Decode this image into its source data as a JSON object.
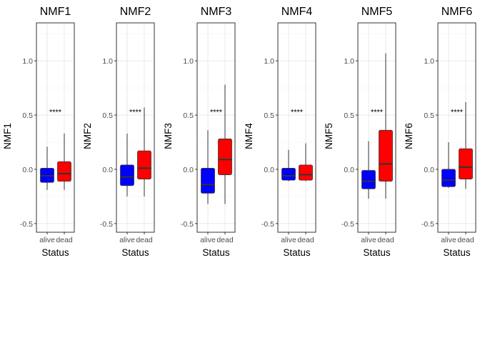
{
  "chart_data": {
    "type": "boxplot",
    "xlabel": "Status",
    "categories": [
      "alive",
      "dead"
    ],
    "ylim": [
      -0.58,
      1.35
    ],
    "yticks": [
      -0.5,
      0.0,
      0.5,
      1.0
    ],
    "ytick_labels": [
      "-0.5",
      "0.0",
      "0.5",
      "1.0"
    ],
    "grid": true,
    "legend": "none",
    "colors": {
      "alive": "#0000ff",
      "dead": "#ff0000"
    },
    "significance": "****",
    "significance_y": 0.53,
    "panels": [
      {
        "title": "NMF1",
        "ylabel": "NMF1",
        "boxes": [
          {
            "group": "alive",
            "min": -0.19,
            "q1": -0.12,
            "median": -0.06,
            "q3": 0.01,
            "max": 0.21
          },
          {
            "group": "dead",
            "min": -0.19,
            "q1": -0.11,
            "median": -0.04,
            "q3": 0.07,
            "max": 0.33
          }
        ]
      },
      {
        "title": "NMF2",
        "ylabel": "NMF2",
        "boxes": [
          {
            "group": "alive",
            "min": -0.25,
            "q1": -0.15,
            "median": -0.07,
            "q3": 0.04,
            "max": 0.33
          },
          {
            "group": "dead",
            "min": -0.25,
            "q1": -0.09,
            "median": 0.01,
            "q3": 0.17,
            "max": 0.57
          }
        ]
      },
      {
        "title": "NMF3",
        "ylabel": "NMF3",
        "boxes": [
          {
            "group": "alive",
            "min": -0.32,
            "q1": -0.22,
            "median": -0.14,
            "q3": 0.01,
            "max": 0.36
          },
          {
            "group": "dead",
            "min": -0.32,
            "q1": -0.05,
            "median": 0.09,
            "q3": 0.28,
            "max": 0.78
          }
        ]
      },
      {
        "title": "NMF4",
        "ylabel": "NMF4",
        "boxes": [
          {
            "group": "alive",
            "min": -0.11,
            "q1": -0.1,
            "median": -0.06,
            "q3": 0.01,
            "max": 0.18
          },
          {
            "group": "dead",
            "min": -0.11,
            "q1": -0.1,
            "median": -0.05,
            "q3": 0.04,
            "max": 0.24
          }
        ]
      },
      {
        "title": "NMF5",
        "ylabel": "NMF5",
        "boxes": [
          {
            "group": "alive",
            "min": -0.27,
            "q1": -0.18,
            "median": -0.11,
            "q3": -0.01,
            "max": 0.26
          },
          {
            "group": "dead",
            "min": -0.27,
            "q1": -0.11,
            "median": 0.05,
            "q3": 0.36,
            "max": 1.07
          }
        ]
      },
      {
        "title": "NMF6",
        "ylabel": "NMF6",
        "boxes": [
          {
            "group": "alive",
            "min": -0.17,
            "q1": -0.16,
            "median": -0.1,
            "q3": 0.0,
            "max": 0.25
          },
          {
            "group": "dead",
            "min": -0.18,
            "q1": -0.09,
            "median": 0.02,
            "q3": 0.19,
            "max": 0.62
          }
        ]
      }
    ]
  }
}
